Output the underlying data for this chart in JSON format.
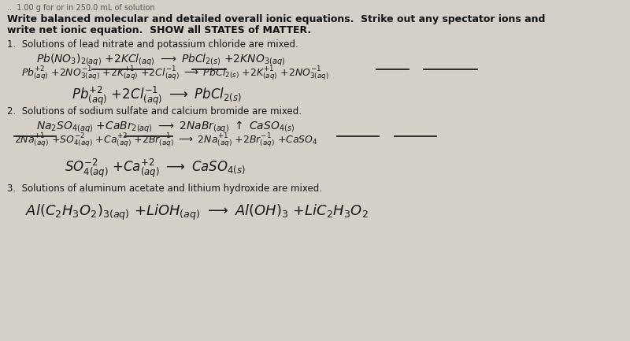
{
  "bg_color": "#c8c4bc",
  "paper_color": "#d4d0c8",
  "text_color": "#111111",
  "hw_color": "#1a1a1a",
  "fig_width": 8.0,
  "fig_height": 4.33,
  "dpi": 100,
  "header1": "Write balanced molecular and detailed overall ionic equations.  Strike out any spectator ions and",
  "header2": "write net ionic equation.  SHOW all STATES of MATTER.",
  "s1_label": "1.  Solutions of lead nitrate and potassium chloride are mixed.",
  "s2_label": "2.  Solutions of sodium sulfate and calcium bromide are mixed.",
  "s3_label": "3.  Solutions of aluminum acetate and lithium hydroxide are mixed.",
  "header_fs": 9.0,
  "label_fs": 8.5,
  "eq_fs": 10.0,
  "net_fs": 12.0
}
